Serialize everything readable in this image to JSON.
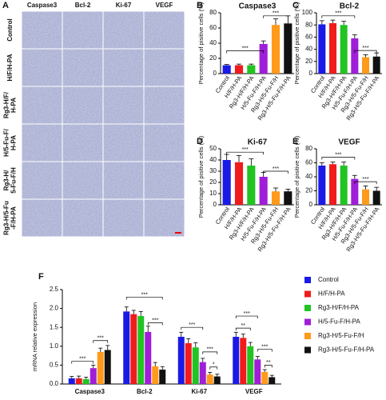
{
  "panel_a": {
    "panel": "A",
    "columns": [
      "Caspase3",
      "Bcl-2",
      "Ki-67",
      "VEGF"
    ],
    "rows": [
      [
        "Control"
      ],
      [
        "H/F/H-PA"
      ],
      [
        "Rg3-H/F/",
        "H-PA"
      ],
      [
        "H/5-Fu-F/",
        "H-PA"
      ],
      [
        "Rg3-H/",
        "5-Fu-F/H"
      ],
      [
        "Rg3-H/5-Fu",
        "-F/H-PA"
      ]
    ]
  },
  "chart_data": [
    {
      "type": "bar",
      "panel": "B",
      "title": "Caspase3",
      "y_label": "Percentage of pisitive cells (%)",
      "categories": [
        "Control",
        "H/F/H-PA",
        "Rg3-H/F/H-PA",
        "H/5-Fu-F/H-PA",
        "Rg3-H/5-Fu-F/H",
        "Rg3-H/5-Fu-F/H-PA"
      ],
      "colors": [
        "#1a1ae6",
        "#f01c1c",
        "#22c322",
        "#a01ed8",
        "#ff9a1a",
        "#111111"
      ],
      "values": [
        11,
        11,
        11,
        39,
        64,
        66
      ],
      "errors": [
        1,
        1.5,
        1.5,
        4,
        8,
        10
      ],
      "ylim": [
        0,
        80
      ],
      "yticks": [
        0,
        20,
        40,
        60,
        80
      ],
      "annotations": [
        "***",
        "***"
      ]
    },
    {
      "type": "bar",
      "panel": "C",
      "title": "Bcl-2",
      "y_label": "Percentage of pisitive cells (%)",
      "categories": [
        "Control",
        "H/F/H-PA",
        "Rg3-H/F/H-PA",
        "H/5-Fu-F/H-PA",
        "Rg3-H/5-Fu-F/H",
        "Rg3-H/5-Fu-F/H-PA"
      ],
      "colors": [
        "#1a1ae6",
        "#f01c1c",
        "#22c322",
        "#a01ed8",
        "#ff9a1a",
        "#111111"
      ],
      "values": [
        81,
        83,
        80,
        58,
        27,
        28
      ],
      "errors": [
        6,
        5,
        6,
        6,
        4,
        6
      ],
      "ylim": [
        0,
        100
      ],
      "yticks": [
        0,
        20,
        40,
        60,
        80,
        100
      ],
      "annotations": [
        "***",
        "***"
      ]
    },
    {
      "type": "bar",
      "panel": "D",
      "title": "Ki-67",
      "y_label": "Percentage of pisitive cells (%)",
      "categories": [
        "Control",
        "H/F/H-PA",
        "Rg3-H/F/H-PA",
        "H/5-Fu-F/H-PA",
        "Rg3-H/5-Fu-F/H",
        "Rg3-H/5-Fu-F/H-PA"
      ],
      "colors": [
        "#1a1ae6",
        "#f01c1c",
        "#22c322",
        "#a01ed8",
        "#ff9a1a",
        "#111111"
      ],
      "values": [
        40,
        38,
        35,
        25,
        12,
        12
      ],
      "errors": [
        5,
        6,
        6,
        4,
        3,
        2
      ],
      "ylim": [
        0,
        50
      ],
      "yticks": [
        0,
        10,
        20,
        30,
        40,
        50
      ],
      "annotations": [
        "***",
        "***"
      ]
    },
    {
      "type": "bar",
      "panel": "E",
      "title": "VEGF",
      "y_label": "Percentage of pisitive cells (%)",
      "categories": [
        "Control",
        "H/F/H-PA",
        "Rg3-H/F/H-PA",
        "H/5-Fu-F/H-PA",
        "Rg3-H/5-Fu-F/H",
        "Rg3-H/5-Fu-F/H-PA"
      ],
      "colors": [
        "#1a1ae6",
        "#f01c1c",
        "#22c322",
        "#a01ed8",
        "#ff9a1a",
        "#111111"
      ],
      "values": [
        56,
        58,
        56,
        37,
        22,
        20
      ],
      "errors": [
        4,
        3,
        5,
        5,
        5,
        5
      ],
      "ylim": [
        0,
        80
      ],
      "yticks": [
        0,
        20,
        40,
        60,
        80
      ],
      "annotations": [
        "***",
        "***"
      ]
    },
    {
      "type": "grouped_bar",
      "panel": "F",
      "y_label": "mRNA relative expression",
      "categories": [
        "Caspase3",
        "Bcl-2",
        "Ki-67",
        "VEGF"
      ],
      "legend": "right",
      "series": [
        {
          "name": "Control",
          "color": "#1a1ae6",
          "values": [
            0.15,
            1.92,
            1.25,
            1.25
          ],
          "errors": [
            0.05,
            0.12,
            0.12,
            0.12
          ]
        },
        {
          "name": "H/F/H-PA",
          "color": "#f01c1c",
          "values": [
            0.15,
            1.85,
            1.08,
            1.22
          ],
          "errors": [
            0.06,
            0.1,
            0.12,
            0.1
          ]
        },
        {
          "name": "Rg3-H/F/H-PA",
          "color": "#22c322",
          "values": [
            0.13,
            1.8,
            0.97,
            1.0
          ],
          "errors": [
            0.05,
            0.12,
            0.12,
            0.1
          ]
        },
        {
          "name": "H/5-Fu-F/H-PA",
          "color": "#a01ed8",
          "values": [
            0.42,
            1.38,
            0.58,
            0.65
          ],
          "errors": [
            0.08,
            0.15,
            0.1,
            0.08
          ]
        },
        {
          "name": "Rg3-H/5-Fu-F/H",
          "color": "#ff9a1a",
          "values": [
            0.85,
            0.47,
            0.25,
            0.32
          ],
          "errors": [
            0.1,
            0.1,
            0.06,
            0.06
          ]
        },
        {
          "name": "Rg3-H/5-Fu-F/H-PA",
          "color": "#111111",
          "values": [
            0.9,
            0.38,
            0.2,
            0.18
          ],
          "errors": [
            0.12,
            0.08,
            0.06,
            0.05
          ]
        }
      ],
      "ylim": [
        0,
        2.5
      ],
      "yticks": [
        {
          "value": 0,
          "label": "0.0"
        },
        0.5,
        {
          "value": 1,
          "label": "1.0"
        },
        1.5,
        {
          "value": 2,
          "label": "2.0"
        },
        2.5
      ],
      "annotations": [
        "***",
        "***",
        "***",
        "***",
        "***",
        "***",
        "*",
        "***",
        "**",
        "***",
        "**"
      ]
    }
  ]
}
